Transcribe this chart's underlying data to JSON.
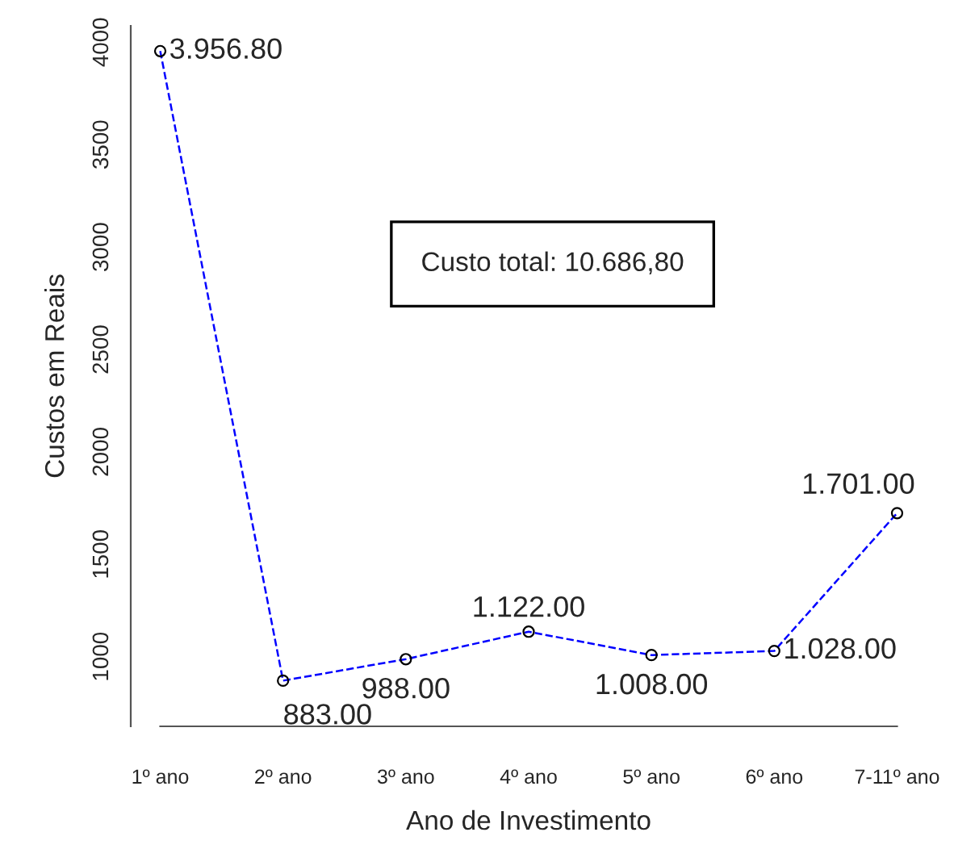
{
  "chart_data": {
    "type": "line",
    "xlabel": "Ano de Investimento",
    "ylabel": "Custos em Reais",
    "categories": [
      "1º ano",
      "2º ano",
      "3º ano",
      "4º ano",
      "5º ano",
      "6º ano",
      "7-11º ano"
    ],
    "series": [
      {
        "color": "#0000ff",
        "values": [
          3956.8,
          883,
          988,
          1122,
          1008,
          1028,
          1701
        ],
        "value_labels": [
          "3.956.80",
          "883.00",
          "988.00",
          "1.122.00",
          "1.008.00",
          "1.028.00",
          "1.701.00"
        ]
      }
    ],
    "ylim": [
      660,
      4080
    ],
    "yticks": [
      1000,
      1500,
      2000,
      2500,
      3000,
      3500,
      4000
    ],
    "marker": "circle",
    "line_style": "dashed",
    "grid": false,
    "legend": false,
    "annotations": [
      "Custo total: 10.686,80"
    ]
  }
}
